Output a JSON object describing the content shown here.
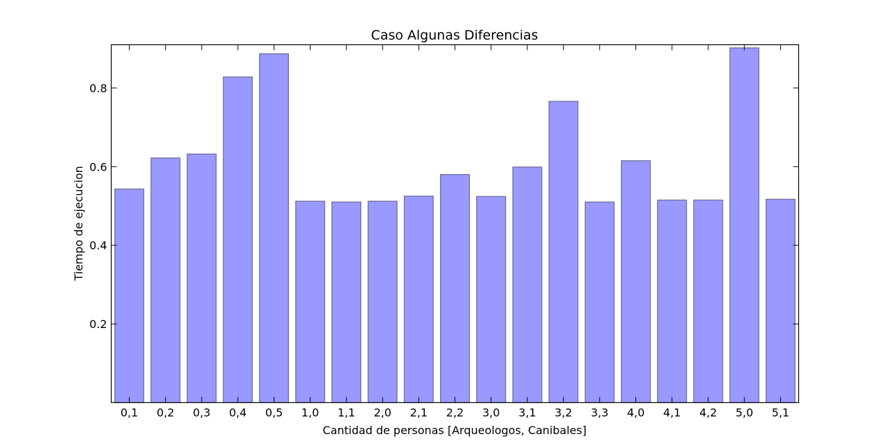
{
  "chart_data": {
    "type": "bar",
    "title": "Caso Algunas Diferencias",
    "xlabel": "Cantidad de personas [Arqueologos, Canibales]",
    "ylabel": "Tiempo de ejecucion",
    "categories": [
      "0,1",
      "0,2",
      "0,3",
      "0,4",
      "0,5",
      "1,0",
      "1,1",
      "2,0",
      "2,1",
      "2,2",
      "3,0",
      "3,1",
      "3,2",
      "3,3",
      "4,0",
      "4,1",
      "4,2",
      "5,0",
      "5,1"
    ],
    "values": [
      0.543,
      0.622,
      0.632,
      0.828,
      0.887,
      0.512,
      0.51,
      0.512,
      0.525,
      0.58,
      0.524,
      0.599,
      0.766,
      0.51,
      0.615,
      0.515,
      0.515,
      0.902,
      0.517
    ],
    "ylim": [
      0.0,
      0.91
    ],
    "yticks": [
      0.2,
      0.4,
      0.6,
      0.8
    ],
    "ytick_labels": [
      "0.2",
      "0.4",
      "0.6",
      "0.8"
    ],
    "grid": false,
    "colors": {
      "bar_fill": "#9999ff",
      "bar_stroke": "#6e6e9a",
      "axis": "#000000"
    }
  }
}
